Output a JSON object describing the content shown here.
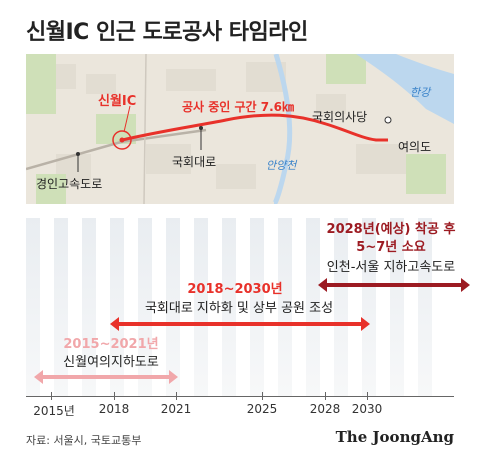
{
  "title": "신월IC 인근 도로공사 타임라인",
  "map": {
    "sinwol_ic": "신월IC",
    "construction_label": "공사 중인 구간 7.6㎞",
    "gukhoe_daero": "국회대로",
    "gyeongin_expressway": "경인고속도로",
    "anyangcheon": "안양천",
    "hangang": "한강",
    "national_assembly": "국회의사당",
    "yeouido": "여의도"
  },
  "timeline": {
    "ticks": [
      "2015년",
      "2018",
      "2021",
      "2025",
      "2028",
      "2030"
    ],
    "phases": [
      {
        "years": "2015~2021년",
        "desc": "신월여의지하도로",
        "start": 2015,
        "end": 2021,
        "color": "#f1a7aa"
      },
      {
        "years": "2018~2030년",
        "desc": "국회대로 지하화 및 상부 공원 조성",
        "start": 2018,
        "end": 2030,
        "color": "#e8312a"
      },
      {
        "years_line1": "2028년(예상) 착공 후",
        "years_line2": "5~7년 소요",
        "desc": "인천-서울 지하고속도로",
        "start": 2028,
        "end": 2033,
        "color": "#9c1b22"
      }
    ]
  },
  "source": "자료: 서울시, 국토교통부",
  "brand": "The JoongAng"
}
